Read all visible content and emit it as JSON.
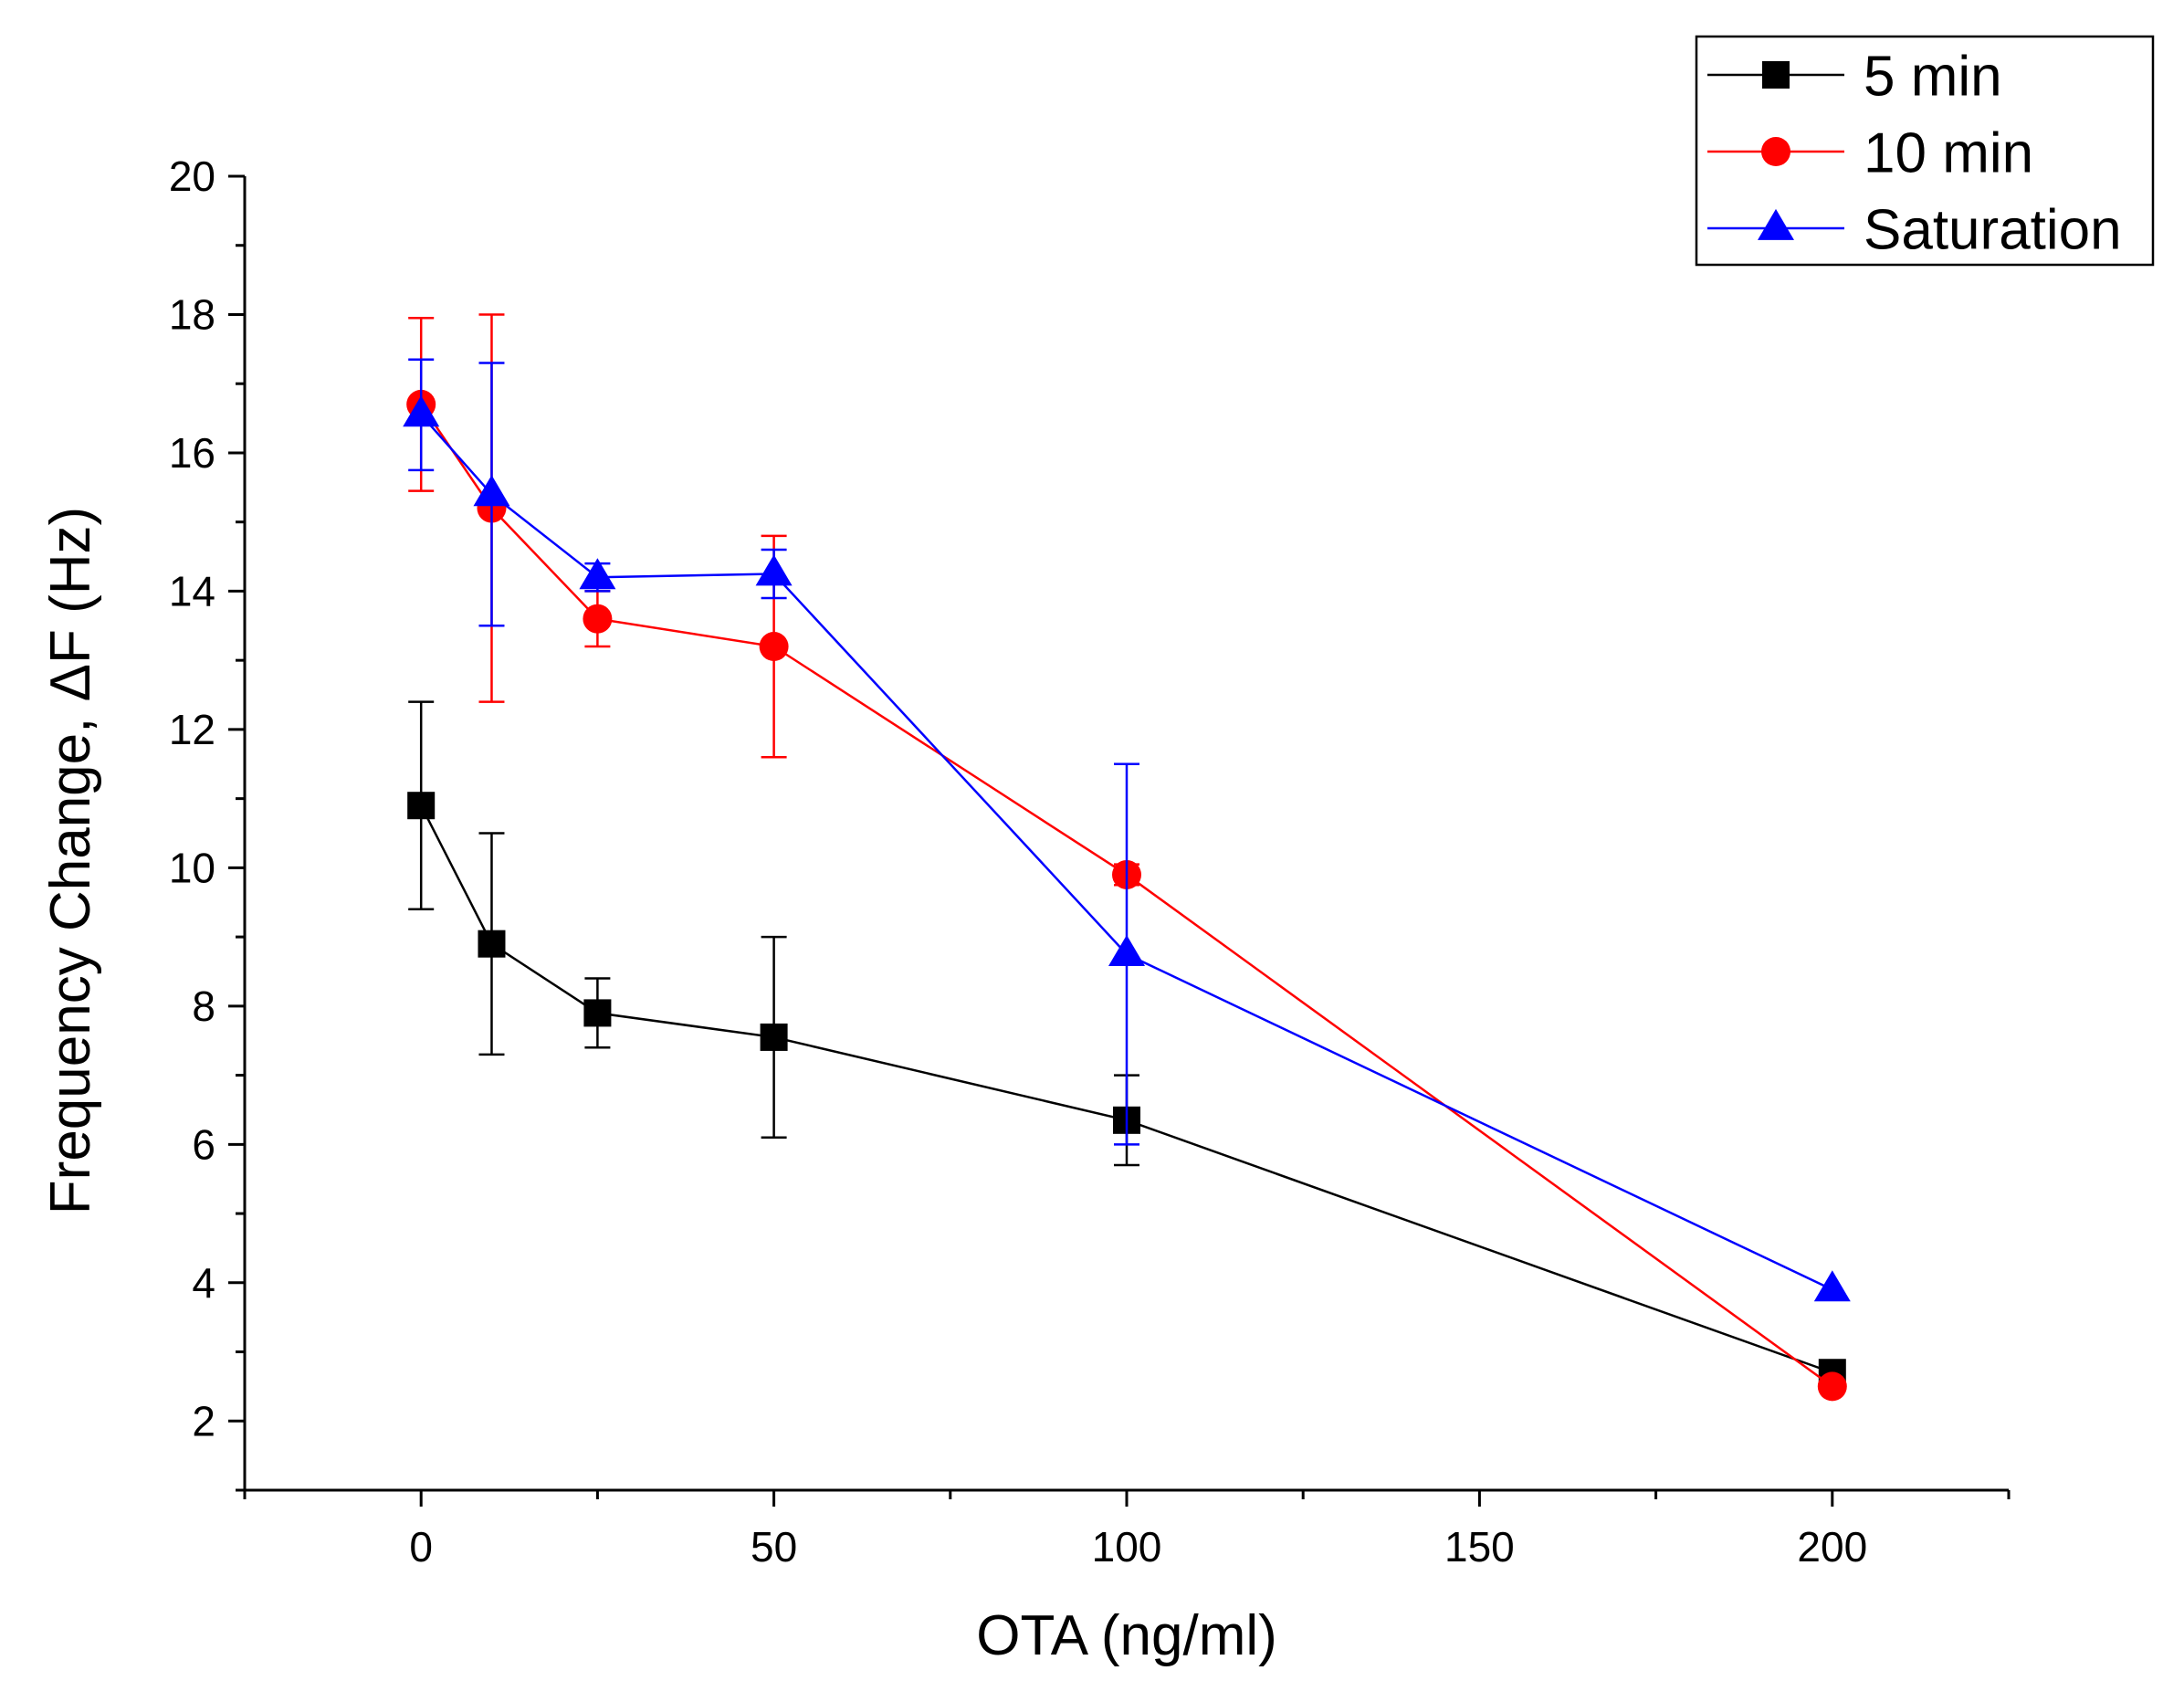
{
  "chart_data": {
    "type": "line",
    "title": "",
    "xlabel": "OTA (ng/ml)",
    "ylabel": "Frequency Change, ΔF (Hz)",
    "xlim": [
      -25,
      225
    ],
    "ylim": [
      1,
      20
    ],
    "xticks": [
      0,
      50,
      100,
      150,
      200
    ],
    "yticks": [
      2,
      4,
      6,
      8,
      10,
      12,
      14,
      16,
      18,
      20
    ],
    "x": [
      0,
      10,
      25,
      50,
      100,
      200
    ],
    "grid": false,
    "legend_position": "top-right",
    "series": [
      {
        "name": "5 min",
        "color": "#000000",
        "marker": "square",
        "y": [
          10.9,
          8.9,
          7.9,
          7.55,
          6.35,
          2.7
        ],
        "err": [
          1.5,
          1.6,
          0.5,
          1.45,
          0.65,
          null
        ]
      },
      {
        "name": "10 min",
        "color": "#ff0000",
        "marker": "circle",
        "y": [
          16.7,
          15.2,
          13.6,
          13.2,
          9.9,
          2.5
        ],
        "err": [
          1.25,
          2.8,
          0.4,
          1.6,
          0.15,
          null
        ]
      },
      {
        "name": "Saturation",
        "color": "#0000ff",
        "marker": "triangle",
        "y": [
          16.55,
          15.4,
          14.2,
          14.25,
          8.75,
          3.9
        ],
        "err": [
          0.8,
          1.9,
          0.2,
          0.35,
          2.75,
          null
        ]
      }
    ]
  }
}
